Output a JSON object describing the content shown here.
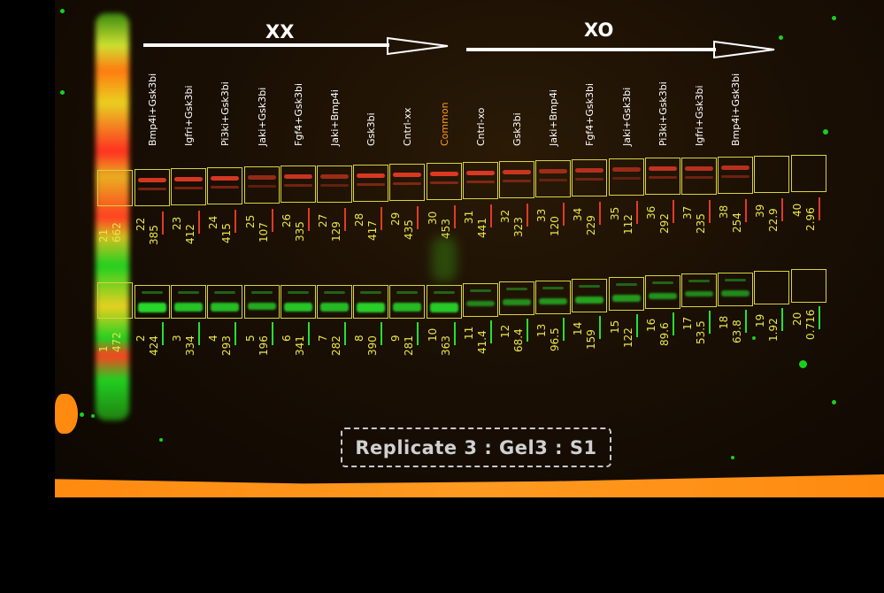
{
  "groups": {
    "xx": "XX",
    "xo": "XO"
  },
  "replicate_label": "Replicate 3 : Gel3 : S1",
  "colors": {
    "red_band": "#e43a24",
    "green_band": "#28e02c",
    "box": "#d8d440",
    "number": "#e8e44a",
    "common_label": "#ff9a20"
  },
  "lanes": [
    {
      "label": "Bmp4i+Gsk3bi",
      "top_id": "22",
      "top_val": "385",
      "bot_id": "2",
      "bot_val": "424",
      "top_level": 0.86,
      "bot_level": 0.93
    },
    {
      "label": "Igfri+Gsk3bi",
      "top_id": "23",
      "top_val": "412",
      "bot_id": "3",
      "bot_val": "334",
      "top_level": 0.9,
      "bot_level": 0.78
    },
    {
      "label": "Pi3ki+Gsk3bi",
      "top_id": "24",
      "top_val": "415",
      "bot_id": "4",
      "bot_val": "293",
      "top_level": 0.9,
      "bot_level": 0.72
    },
    {
      "label": "Jaki+Gsk3bi",
      "top_id": "25",
      "top_val": "107",
      "bot_id": "5",
      "bot_val": "196",
      "top_level": 0.4,
      "bot_level": 0.56
    },
    {
      "label": "Fgf4+Gsk3bi",
      "top_id": "26",
      "top_val": "335",
      "bot_id": "6",
      "bot_val": "341",
      "top_level": 0.8,
      "bot_level": 0.78
    },
    {
      "label": "Jaki+Bmp4i",
      "top_id": "27",
      "top_val": "129",
      "bot_id": "7",
      "bot_val": "282",
      "top_level": 0.45,
      "bot_level": 0.7
    },
    {
      "label": "Gsk3bi",
      "top_id": "28",
      "top_val": "417",
      "bot_id": "8",
      "bot_val": "390",
      "top_level": 0.9,
      "bot_level": 0.86
    },
    {
      "label": "Cntrl-xx",
      "top_id": "29",
      "top_val": "435",
      "bot_id": "9",
      "bot_val": "281",
      "top_level": 0.92,
      "bot_level": 0.7
    },
    {
      "label": "Common",
      "top_id": "30",
      "top_val": "453",
      "bot_id": "10",
      "bot_val": "363",
      "top_level": 0.95,
      "bot_level": 0.82
    },
    {
      "label": "Cntrl-xo",
      "top_id": "31",
      "top_val": "441",
      "bot_id": "11",
      "bot_val": "41.4",
      "top_level": 0.93,
      "bot_level": 0.28
    },
    {
      "label": "Gsk3bi",
      "top_id": "32",
      "top_val": "323",
      "bot_id": "12",
      "bot_val": "68.4",
      "top_level": 0.78,
      "bot_level": 0.34
    },
    {
      "label": "Jaki+Bmp4i",
      "top_id": "33",
      "top_val": "120",
      "bot_id": "13",
      "bot_val": "96.5",
      "top_level": 0.43,
      "bot_level": 0.4
    },
    {
      "label": "Fgf4+Gsk3bi",
      "top_id": "34",
      "top_val": "229",
      "bot_id": "14",
      "bot_val": "159",
      "top_level": 0.62,
      "bot_level": 0.5
    },
    {
      "label": "Jaki+Gsk3bi",
      "top_id": "35",
      "top_val": "112",
      "bot_id": "15",
      "bot_val": "122",
      "top_level": 0.4,
      "bot_level": 0.44
    },
    {
      "label": "Pi3ki+Gsk3bi",
      "top_id": "36",
      "top_val": "292",
      "bot_id": "16",
      "bot_val": "89.6",
      "top_level": 0.72,
      "bot_level": 0.38
    },
    {
      "label": "Igfri+Gsk3bi",
      "top_id": "37",
      "top_val": "235",
      "bot_id": "17",
      "bot_val": "53.5",
      "top_level": 0.64,
      "bot_level": 0.3
    },
    {
      "label": "Bmp4i+Gsk3bi",
      "top_id": "38",
      "top_val": "254",
      "bot_id": "18",
      "bot_val": "63.8",
      "top_level": 0.66,
      "bot_level": 0.32
    },
    {
      "label": "",
      "top_id": "39",
      "top_val": "22.9",
      "bot_id": "19",
      "bot_val": "1.92",
      "top_level": 0.0,
      "bot_level": 0.0
    },
    {
      "label": "",
      "top_id": "40",
      "top_val": "2.96",
      "bot_id": "20",
      "bot_val": "0.716",
      "top_level": 0.0,
      "bot_level": 0.0
    }
  ],
  "ladder": {
    "top_id": "21",
    "top_val": "662",
    "bot_id": "1",
    "bot_val": "472"
  }
}
